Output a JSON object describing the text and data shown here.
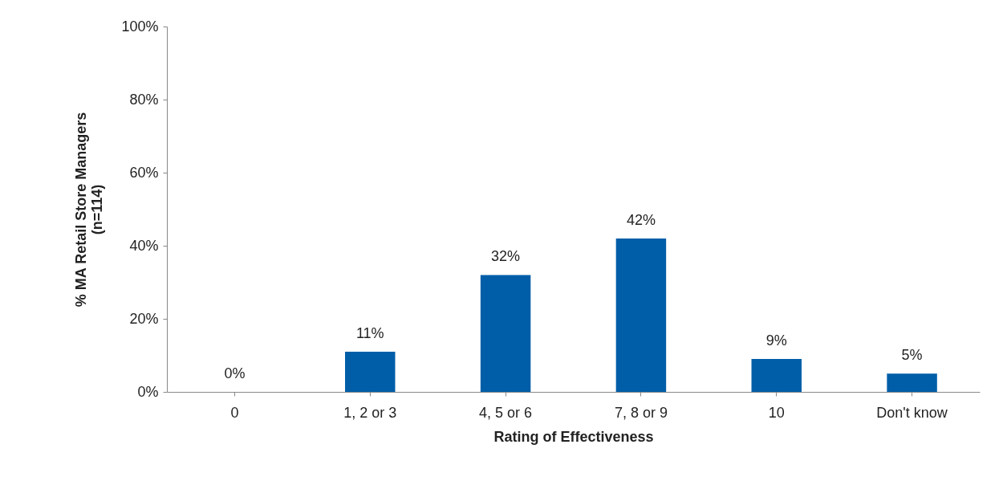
{
  "chart_data": {
    "type": "bar",
    "xlabel": "Rating of Effectiveness",
    "ylabel": "% MA Retail Store Managers (n=114)",
    "categories": [
      "0",
      "1, 2 or 3",
      "4, 5 or 6",
      "7, 8 or 9",
      "10",
      "Don't know"
    ],
    "values": [
      0,
      11,
      32,
      42,
      9,
      5
    ],
    "color": "#005ea8",
    "ylim": [
      0,
      100
    ],
    "yticks": [
      {
        "value": 0,
        "label": "0%"
      },
      {
        "value": 20,
        "label": "20%"
      },
      {
        "value": 40,
        "label": "40%"
      },
      {
        "value": 60,
        "label": "60%"
      },
      {
        "value": 80,
        "label": "80%"
      },
      {
        "value": 100,
        "label": "100%"
      }
    ],
    "value_labels": [
      "0%",
      "11%",
      "32%",
      "42%",
      "9%",
      "5%"
    ],
    "grid": false
  }
}
